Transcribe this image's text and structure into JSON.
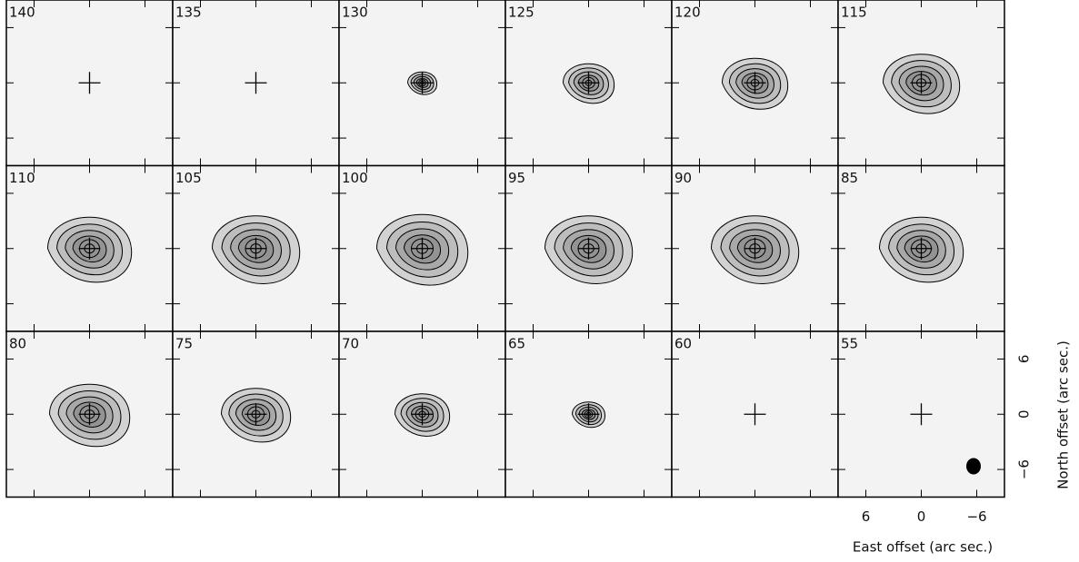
{
  "chart_data": {
    "type": "channel-map",
    "channels": [
      140,
      135,
      130,
      125,
      120,
      115,
      110,
      105,
      100,
      95,
      90,
      85,
      80,
      75,
      70,
      65,
      60,
      55
    ],
    "x_label": "East offset (arc sec.)",
    "y_label": "North offset (arc sec.)",
    "xlim": [
      9,
      -9
    ],
    "ylim": [
      -9,
      9
    ],
    "xticks": [
      6,
      0,
      {
        "value": -6,
        "label": "−6"
      }
    ],
    "yticks": [
      {
        "value": -6,
        "label": "−6"
      },
      0,
      6
    ],
    "columns": 6
  }
}
